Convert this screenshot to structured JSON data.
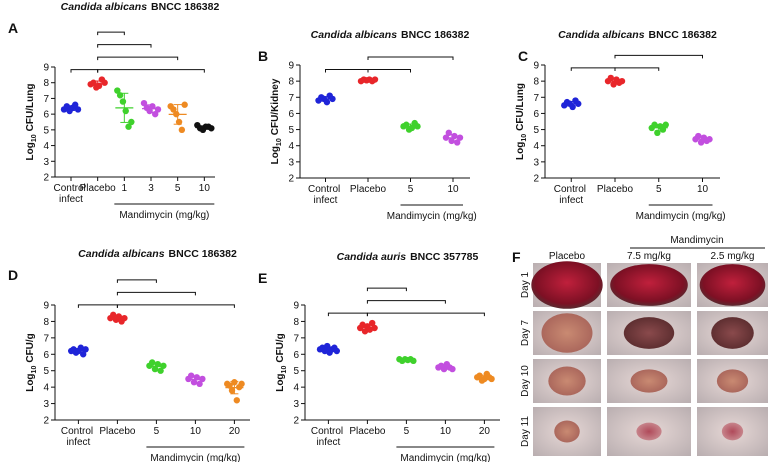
{
  "chart_data": [
    {
      "type": "dotplot",
      "panel": "A",
      "title": {
        "species": "Candida albicans",
        "strain": "BNCC 186382"
      },
      "ylabel": {
        "base": "Log",
        "sub": "10",
        "unit": "CFU/Lung"
      },
      "categories": [
        "Control infect",
        "Placebo",
        "1",
        "3",
        "5",
        "10"
      ],
      "colors": [
        "#1f24d8",
        "#e8262a",
        "#3fd12c",
        "#c24fdf",
        "#ee8a22",
        "#111111"
      ],
      "points": [
        [
          6.3,
          6.5,
          6.2,
          6.4,
          6.6,
          6.3
        ],
        [
          7.9,
          8.0,
          7.7,
          7.8,
          8.2,
          8.0
        ],
        [
          7.5,
          7.2,
          6.8,
          6.2,
          5.2,
          5.5
        ],
        [
          6.7,
          6.4,
          6.2,
          6.5,
          6.0,
          6.3
        ],
        [
          6.5,
          6.3,
          6.0,
          5.5,
          5.0,
          6.6
        ],
        [
          5.3,
          5.1,
          5.0,
          5.2,
          5.2,
          5.1
        ]
      ],
      "group": {
        "label": "Mandimycin (mg/kg)",
        "from": 2,
        "to": 5
      },
      "comparisons": [
        {
          "from": 0,
          "to": 1,
          "label": "****"
        },
        {
          "from": 1,
          "to": 5,
          "label": "****"
        },
        {
          "from": 1,
          "to": 4,
          "label": "****"
        },
        {
          "from": 1,
          "to": 3,
          "label": "****"
        },
        {
          "from": 1,
          "to": 2,
          "label": "***"
        }
      ],
      "ylim": [
        2,
        9
      ],
      "yticks": [
        2,
        3,
        4,
        5,
        6,
        7,
        8,
        9
      ]
    },
    {
      "type": "dotplot",
      "panel": "B",
      "title": {
        "species": "Candida albicans",
        "strain": "BNCC 186382"
      },
      "ylabel": {
        "base": "Log",
        "sub": "10",
        "unit": "CFU/Kidney"
      },
      "categories": [
        "Control infect",
        "Placebo",
        "5",
        "10"
      ],
      "colors": [
        "#1f24d8",
        "#e8262a",
        "#3fd12c",
        "#c24fdf"
      ],
      "points": [
        [
          6.8,
          7.0,
          6.9,
          6.7,
          7.1,
          6.9
        ],
        [
          8.0,
          8.1,
          8.05,
          8.1,
          8.0,
          8.1
        ],
        [
          5.2,
          5.3,
          5.0,
          5.1,
          5.4,
          5.2
        ],
        [
          4.5,
          4.8,
          4.3,
          4.6,
          4.2,
          4.5
        ]
      ],
      "group": {
        "label": "Mandimycin (mg/kg)",
        "from": 2,
        "to": 3
      },
      "comparisons": [
        {
          "from": 0,
          "to": 1,
          "label": "****"
        },
        {
          "from": 1,
          "to": 2,
          "label": "****"
        },
        {
          "from": 1,
          "to": 3,
          "label": "****"
        }
      ],
      "ylim": [
        2,
        9
      ],
      "yticks": [
        2,
        3,
        4,
        5,
        6,
        7,
        8,
        9
      ]
    },
    {
      "type": "dotplot",
      "panel": "C",
      "title": {
        "species": "Candida albicans",
        "strain": "BNCC 186382"
      },
      "ylabel": {
        "base": "Log",
        "sub": "10",
        "unit": "CFU/Lung"
      },
      "categories": [
        "Control infect",
        "Placebo",
        "5",
        "10"
      ],
      "colors": [
        "#1f24d8",
        "#e8262a",
        "#3fd12c",
        "#c24fdf"
      ],
      "points": [
        [
          6.5,
          6.7,
          6.6,
          6.4,
          6.8,
          6.6
        ],
        [
          8.0,
          8.2,
          7.8,
          8.1,
          7.9,
          8.0
        ],
        [
          5.1,
          5.3,
          4.8,
          5.2,
          5.0,
          5.3
        ],
        [
          4.4,
          4.6,
          4.2,
          4.5,
          4.3,
          4.4
        ]
      ],
      "group": {
        "label": "Mandimycin (mg/kg)",
        "from": 2,
        "to": 3
      },
      "comparisons": [
        {
          "from": 0,
          "to": 1,
          "label": "****"
        },
        {
          "from": 1,
          "to": 2,
          "label": "****"
        },
        {
          "from": 1,
          "to": 3,
          "label": "****"
        }
      ],
      "ylim": [
        2,
        9
      ],
      "yticks": [
        2,
        3,
        4,
        5,
        6,
        7,
        8,
        9
      ]
    },
    {
      "type": "dotplot",
      "panel": "D",
      "title": {
        "species": "Candida albicans",
        "strain": "BNCC 186382"
      },
      "ylabel": {
        "base": "Log",
        "sub": "10",
        "unit": "CFU/g"
      },
      "categories": [
        "Control infect",
        "Placebo",
        "5",
        "10",
        "20"
      ],
      "colors": [
        "#1f24d8",
        "#e8262a",
        "#3fd12c",
        "#c24fdf",
        "#ee8a22"
      ],
      "points": [
        [
          6.2,
          6.3,
          6.1,
          6.2,
          6.4,
          6.0,
          6.3
        ],
        [
          8.2,
          8.4,
          8.1,
          8.3,
          8.0,
          8.2
        ],
        [
          5.3,
          5.5,
          5.1,
          5.4,
          5.0,
          5.3
        ],
        [
          4.5,
          4.7,
          4.3,
          4.6,
          4.2,
          4.5
        ],
        [
          4.2,
          4.1,
          3.8,
          4.3,
          3.2,
          4.0,
          4.2
        ]
      ],
      "group": {
        "label": "Mandimycin (mg/kg)",
        "from": 2,
        "to": 4
      },
      "comparisons": [
        {
          "from": 0,
          "to": 1,
          "label": "****"
        },
        {
          "from": 1,
          "to": 4,
          "label": "****"
        },
        {
          "from": 1,
          "to": 3,
          "label": "****"
        },
        {
          "from": 1,
          "to": 2,
          "label": "****"
        }
      ],
      "ylim": [
        2,
        9
      ],
      "yticks": [
        2,
        3,
        4,
        5,
        6,
        7,
        8,
        9
      ]
    },
    {
      "type": "dotplot",
      "panel": "E",
      "title": {
        "species": "Candida auris",
        "strain": "BNCC 357785"
      },
      "ylabel": {
        "base": "Log",
        "sub": "10",
        "unit": "CFU/g"
      },
      "categories": [
        "Control infect",
        "Placebo",
        "5",
        "10",
        "20"
      ],
      "colors": [
        "#1f24d8",
        "#e8262a",
        "#3fd12c",
        "#c24fdf",
        "#ee8a22"
      ],
      "points": [
        [
          6.3,
          6.4,
          6.2,
          6.5,
          6.1,
          6.3,
          6.4,
          6.2
        ],
        [
          7.6,
          7.8,
          7.4,
          7.7,
          7.5,
          7.9,
          7.6
        ],
        [
          5.7,
          5.6,
          5.7,
          5.65,
          5.7,
          5.6
        ],
        [
          5.2,
          5.3,
          5.1,
          5.4,
          5.2,
          5.1
        ],
        [
          4.6,
          4.7,
          4.4,
          4.5,
          4.8,
          4.6,
          4.5
        ]
      ],
      "group": {
        "label": "Mandimycin (mg/kg)",
        "from": 2,
        "to": 4
      },
      "comparisons": [
        {
          "from": 0,
          "to": 1,
          "label": "****"
        },
        {
          "from": 1,
          "to": 4,
          "label": "****"
        },
        {
          "from": 1,
          "to": 3,
          "label": "****"
        },
        {
          "from": 1,
          "to": 2,
          "label": "****"
        }
      ],
      "ylim": [
        2,
        9
      ],
      "yticks": [
        2,
        3,
        4,
        5,
        6,
        7,
        8,
        9
      ]
    }
  ],
  "panel_f": {
    "panel": "F",
    "group": "Mandimycin",
    "columns": [
      "Placebo",
      "7.5 mg/kg",
      "2.5 mg/kg"
    ],
    "rows": [
      "Day 1",
      "Day 7",
      "Day 10",
      "Day 11"
    ]
  }
}
